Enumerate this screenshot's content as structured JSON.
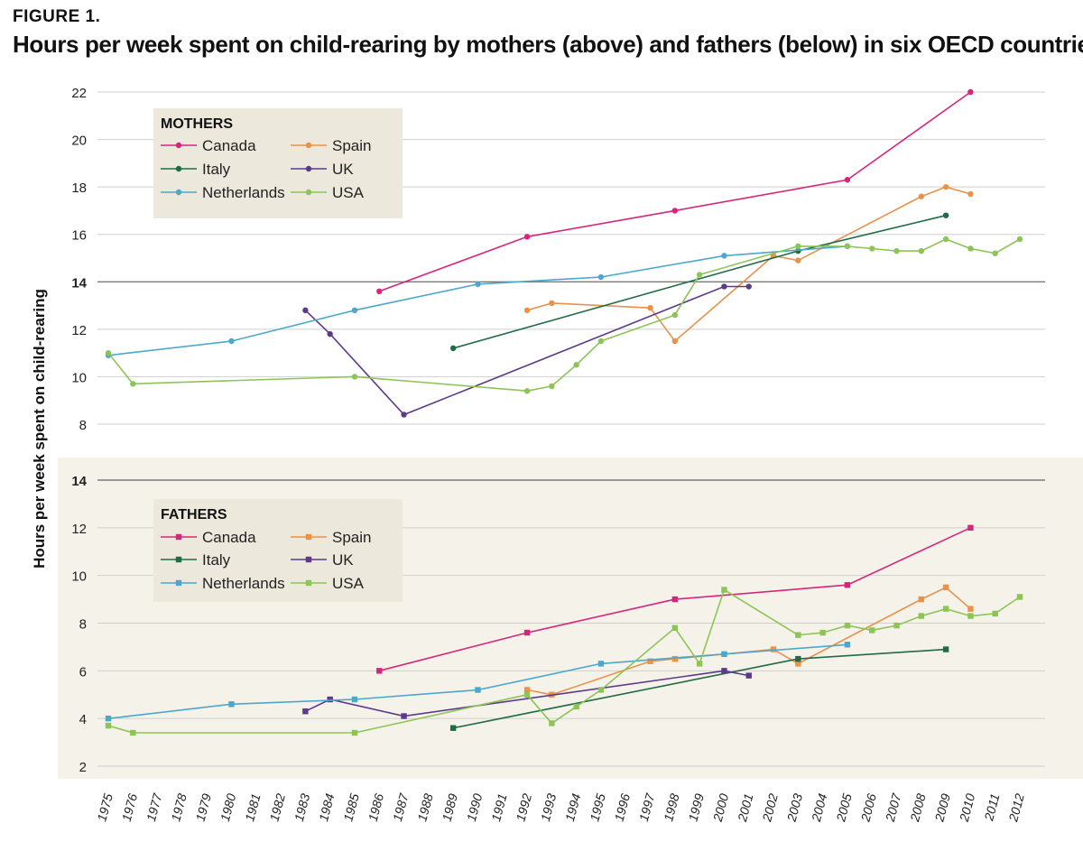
{
  "figure_label": "FIGURE 1.",
  "title": "Hours per week spent on child-rearing by mothers (above) and fathers (below) in six OECD countries",
  "colors": {
    "Canada": "#d6267c",
    "Spain": "#e8924b",
    "Italy": "#1f6b45",
    "UK": "#5b3a8a",
    "Netherlands": "#4aa8cc",
    "USA": "#8cc456",
    "grid": "#cfcfcf",
    "father_panel_bg": "#f5f2ea",
    "legend_bg": "#ece9dc"
  },
  "chart_data": {
    "type": "line",
    "ylabel": "Hours per week spent on child-rearing",
    "x_ticks": [
      1975,
      1976,
      1977,
      1978,
      1979,
      1980,
      1981,
      1982,
      1983,
      1984,
      1985,
      1986,
      1987,
      1988,
      1989,
      1990,
      1991,
      1992,
      1993,
      1994,
      1995,
      1996,
      1997,
      1998,
      1999,
      2000,
      2001,
      2002,
      2003,
      2004,
      2005,
      2006,
      2007,
      2008,
      2009,
      2010,
      2011,
      2012
    ],
    "xlim": [
      1975,
      2012
    ],
    "panels": [
      {
        "name": "MOTHERS",
        "marker": "circle",
        "ylim": [
          8,
          22
        ],
        "y_ticks": [
          8,
          10,
          12,
          14,
          16,
          18,
          20,
          22
        ],
        "highlight_tick": 14,
        "legend": [
          "Canada",
          "Spain",
          "Italy",
          "UK",
          "Netherlands",
          "USA"
        ],
        "series": [
          {
            "name": "Canada",
            "points": [
              [
                1986,
                13.6
              ],
              [
                1992,
                15.9
              ],
              [
                1998,
                17.0
              ],
              [
                2005,
                18.3
              ],
              [
                2010,
                22.0
              ]
            ]
          },
          {
            "name": "Spain",
            "points": [
              [
                1992,
                12.8
              ],
              [
                1993,
                13.1
              ],
              [
                1997,
                12.9
              ],
              [
                1998,
                11.5
              ],
              [
                2002,
                15.1
              ],
              [
                2003,
                14.9
              ],
              [
                2008,
                17.6
              ],
              [
                2009,
                18.0
              ],
              [
                2010,
                17.7
              ]
            ]
          },
          {
            "name": "Italy",
            "points": [
              [
                1989,
                11.2
              ],
              [
                2003,
                15.3
              ],
              [
                2009,
                16.8
              ]
            ]
          },
          {
            "name": "UK",
            "points": [
              [
                1983,
                12.8
              ],
              [
                1984,
                11.8
              ],
              [
                1987,
                8.4
              ],
              [
                2000,
                13.8
              ],
              [
                2001,
                13.8
              ]
            ]
          },
          {
            "name": "Netherlands",
            "points": [
              [
                1975,
                10.9
              ],
              [
                1980,
                11.5
              ],
              [
                1985,
                12.8
              ],
              [
                1990,
                13.9
              ],
              [
                1995,
                14.2
              ],
              [
                2000,
                15.1
              ],
              [
                2005,
                15.5
              ]
            ]
          },
          {
            "name": "USA",
            "points": [
              [
                1975,
                11.0
              ],
              [
                1976,
                9.7
              ],
              [
                1985,
                10.0
              ],
              [
                1992,
                9.4
              ],
              [
                1993,
                9.6
              ],
              [
                1994,
                10.5
              ],
              [
                1995,
                11.5
              ],
              [
                1998,
                12.6
              ],
              [
                1999,
                14.3
              ],
              [
                2003,
                15.5
              ],
              [
                2005,
                15.5
              ],
              [
                2006,
                15.4
              ],
              [
                2007,
                15.3
              ],
              [
                2008,
                15.3
              ],
              [
                2009,
                15.8
              ],
              [
                2010,
                15.4
              ],
              [
                2011,
                15.2
              ],
              [
                2012,
                15.8
              ]
            ]
          }
        ]
      },
      {
        "name": "FATHERS",
        "marker": "square",
        "ylim": [
          2,
          14
        ],
        "y_ticks": [
          2,
          4,
          6,
          8,
          10,
          12,
          14
        ],
        "highlight_tick": 14,
        "legend": [
          "Canada",
          "Spain",
          "Italy",
          "UK",
          "Netherlands",
          "USA"
        ],
        "series": [
          {
            "name": "Canada",
            "points": [
              [
                1986,
                6.0
              ],
              [
                1992,
                7.6
              ],
              [
                1998,
                9.0
              ],
              [
                2005,
                9.6
              ],
              [
                2010,
                12.0
              ]
            ]
          },
          {
            "name": "Spain",
            "points": [
              [
                1992,
                5.2
              ],
              [
                1993,
                5.0
              ],
              [
                1997,
                6.4
              ],
              [
                1998,
                6.5
              ],
              [
                2002,
                6.9
              ],
              [
                2003,
                6.3
              ],
              [
                2008,
                9.0
              ],
              [
                2009,
                9.5
              ],
              [
                2010,
                8.6
              ]
            ]
          },
          {
            "name": "Italy",
            "points": [
              [
                1989,
                3.6
              ],
              [
                2003,
                6.5
              ],
              [
                2009,
                6.9
              ]
            ]
          },
          {
            "name": "UK",
            "points": [
              [
                1983,
                4.3
              ],
              [
                1984,
                4.8
              ],
              [
                1987,
                4.1
              ],
              [
                2000,
                6.0
              ],
              [
                2001,
                5.8
              ]
            ]
          },
          {
            "name": "Netherlands",
            "points": [
              [
                1975,
                4.0
              ],
              [
                1980,
                4.6
              ],
              [
                1985,
                4.8
              ],
              [
                1990,
                5.2
              ],
              [
                1995,
                6.3
              ],
              [
                2000,
                6.7
              ],
              [
                2005,
                7.1
              ]
            ]
          },
          {
            "name": "USA",
            "points": [
              [
                1975,
                3.7
              ],
              [
                1976,
                3.4
              ],
              [
                1985,
                3.4
              ],
              [
                1992,
                5.0
              ],
              [
                1993,
                3.8
              ],
              [
                1994,
                4.5
              ],
              [
                1995,
                5.2
              ],
              [
                1998,
                7.8
              ],
              [
                1999,
                6.3
              ],
              [
                2000,
                9.4
              ],
              [
                2003,
                7.5
              ],
              [
                2004,
                7.6
              ],
              [
                2005,
                7.9
              ],
              [
                2006,
                7.7
              ],
              [
                2007,
                7.9
              ],
              [
                2008,
                8.3
              ],
              [
                2009,
                8.6
              ],
              [
                2010,
                8.3
              ],
              [
                2011,
                8.4
              ],
              [
                2012,
                9.1
              ]
            ]
          }
        ]
      }
    ]
  }
}
